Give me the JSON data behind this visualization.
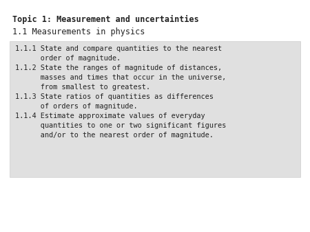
{
  "title_bold": "Topic 1: Measurement and uncertainties",
  "subtitle": "1.1 Measurements in physics",
  "box_text_lines": [
    "1.1.1 State and compare quantities to the nearest",
    "      order of magnitude.",
    "1.1.2 State the ranges of magnitude of distances,",
    "      masses and times that occur in the universe,",
    "      from smallest to greatest.",
    "1.1.3 State ratios of quantities as differences",
    "      of orders of magnitude.",
    "1.1.4 Estimate approximate values of everyday",
    "      quantities to one or two significant figures",
    "      and/or to the nearest order of magnitude."
  ],
  "bg_color": "#ffffff",
  "box_bg_color": "#e0e0e0",
  "text_color": "#222222",
  "title_fontsize": 8.5,
  "subtitle_fontsize": 8.5,
  "body_fontsize": 7.4
}
